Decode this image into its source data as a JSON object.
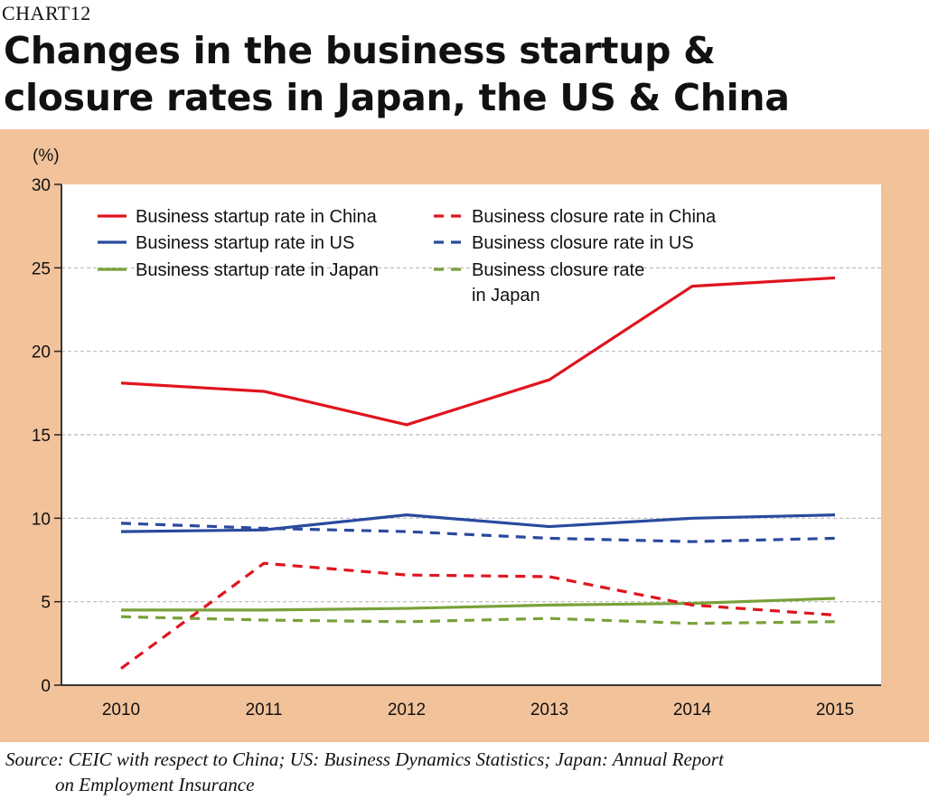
{
  "header": {
    "chart_number": "CHART12",
    "title_line1": "Changes in the business startup &",
    "title_line2": "closure rates in Japan, the US & China"
  },
  "source": {
    "line1": "Source: CEIC with respect to China; US: Business Dynamics Statistics; Japan: Annual Report",
    "line2": "on Employment Insurance"
  },
  "chart_data": {
    "type": "line",
    "ylabel": "(%)",
    "xlabel": "",
    "x": [
      "2010",
      "2011",
      "2012",
      "2013",
      "2014",
      "2015"
    ],
    "ylim": [
      0,
      30
    ],
    "yticks": [
      "0",
      "5",
      "10",
      "15",
      "20",
      "25",
      "30"
    ],
    "grid": "horizontal-dashed",
    "legend_position": "top-left",
    "series": [
      {
        "name": "Business startup rate in China",
        "values": [
          18.1,
          17.6,
          15.6,
          18.3,
          23.9,
          24.4
        ],
        "color": "#e0141e",
        "dash": "solid"
      },
      {
        "name": "Business startup rate in US",
        "values": [
          9.2,
          9.3,
          10.2,
          9.5,
          10.0,
          10.2
        ],
        "color": "#2a4a9e",
        "dash": "solid"
      },
      {
        "name": "Business startup rate in Japan",
        "values": [
          4.5,
          4.5,
          4.6,
          4.8,
          4.9,
          5.2
        ],
        "color": "#79a13a",
        "dash": "solid"
      },
      {
        "name": "Business closure rate in China",
        "values": [
          1.0,
          7.3,
          6.6,
          6.5,
          4.8,
          4.2
        ],
        "color": "#e0141e",
        "dash": "dashed"
      },
      {
        "name": "Business closure rate in US",
        "values": [
          9.7,
          9.4,
          9.2,
          8.8,
          8.6,
          8.8
        ],
        "color": "#2a4a9e",
        "dash": "dashed"
      },
      {
        "name": "Business closure rate in Japan",
        "values": [
          4.1,
          3.9,
          3.8,
          4.0,
          3.7,
          3.8
        ],
        "color": "#79a13a",
        "dash": "dashed"
      }
    ],
    "legend_lines": [
      {
        "series": 0,
        "lines": [
          "Business startup rate in China"
        ]
      },
      {
        "series": 3,
        "lines": [
          "Business closure rate in China"
        ]
      },
      {
        "series": 1,
        "lines": [
          "Business startup rate in US"
        ]
      },
      {
        "series": 4,
        "lines": [
          "Business closure rate in US"
        ]
      },
      {
        "series": 2,
        "lines": [
          "Business startup rate in Japan"
        ]
      },
      {
        "series": 5,
        "lines": [
          "Business closure rate",
          "in Japan"
        ]
      }
    ]
  }
}
